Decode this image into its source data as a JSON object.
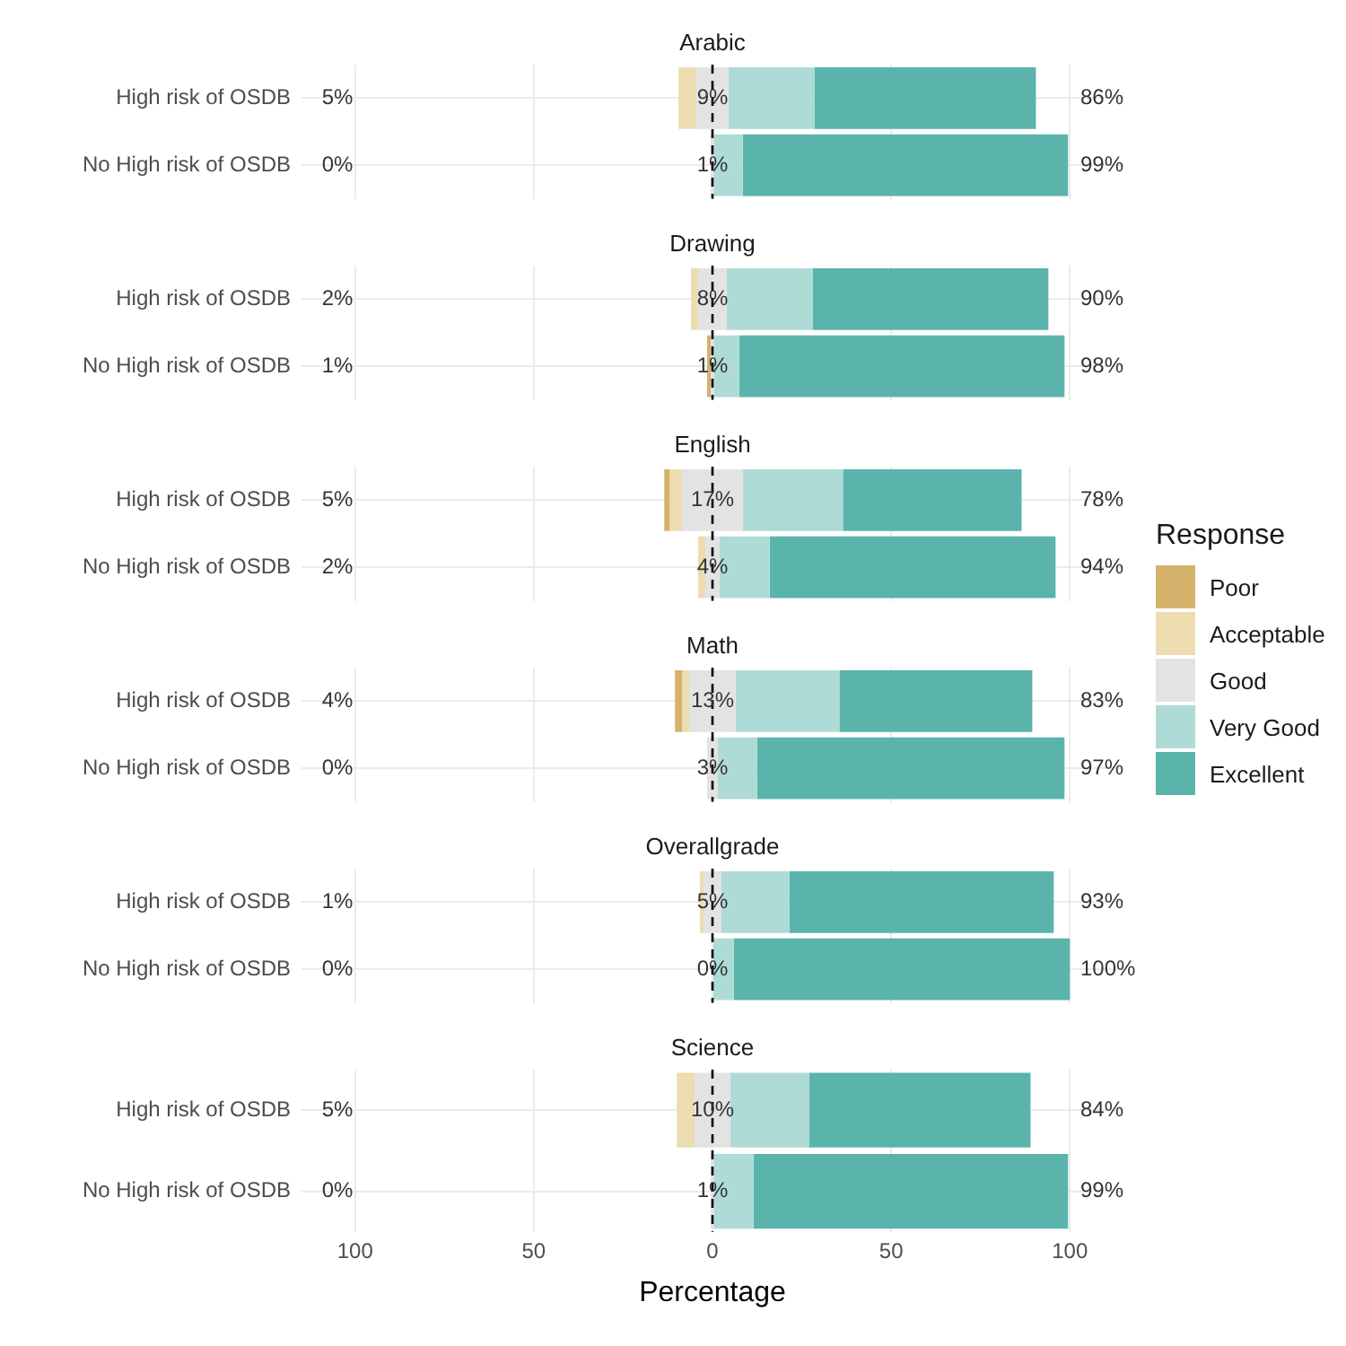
{
  "chart_data": [
    {
      "type": "bar",
      "orientation": "horizontal",
      "title": "Arabic",
      "categories": [
        "High risk of OSDB",
        "No High risk of OSDB"
      ],
      "xlim": [
        -115,
        115
      ],
      "xticks": [
        {
          "value": -100,
          "label": null
        },
        {
          "value": -50,
          "label": null
        },
        {
          "value": 0,
          "label": null
        },
        {
          "value": 50,
          "label": null
        },
        {
          "value": 100,
          "label": null
        }
      ],
      "grid": true,
      "tick_labels": "y",
      "legend": "right",
      "legend_title": "Response",
      "ref_lines": [
        {
          "axis": "x",
          "value": 0,
          "color": "#000000",
          "line_style": "dashed"
        }
      ],
      "series": [
        {
          "name": "Poor",
          "color": "#d5b26b",
          "values": [
            null,
            null
          ],
          "base": [
            null,
            null
          ]
        },
        {
          "name": "Acceptable",
          "color": "#ecdcb0",
          "values": [
            5,
            null
          ],
          "base": [
            -9.5,
            null
          ]
        },
        {
          "name": "Good",
          "color": "#e3e3e3",
          "values": [
            9,
            1
          ],
          "base": [
            -4.5,
            -0.5
          ]
        },
        {
          "name": "Very Good",
          "color": "#aedbd6",
          "values": [
            24,
            8
          ],
          "base": [
            4.5,
            0.5
          ]
        },
        {
          "name": "Excellent",
          "color": "#5ab4ac",
          "values": [
            62,
            91
          ],
          "base": [
            28.5,
            8.5
          ]
        }
      ],
      "annotations": [
        "5%",
        "9%",
        "86%",
        "0%",
        "1%",
        "99%"
      ]
    },
    {
      "type": "bar",
      "orientation": "horizontal",
      "title": "Drawing",
      "categories": [
        "High risk of OSDB",
        "No High risk of OSDB"
      ],
      "xlim": [
        -115,
        115
      ],
      "xticks": [
        {
          "value": -100,
          "label": null
        },
        {
          "value": -50,
          "label": null
        },
        {
          "value": 0,
          "label": null
        },
        {
          "value": 50,
          "label": null
        },
        {
          "value": 100,
          "label": null
        }
      ],
      "grid": true,
      "tick_labels": "y",
      "ref_lines": [
        {
          "axis": "x",
          "value": 0,
          "color": "#000000",
          "line_style": "dashed"
        }
      ],
      "series": [
        {
          "color": "#d5b26b",
          "values": [
            null,
            1
          ],
          "base": [
            null,
            -1.5
          ]
        },
        {
          "color": "#ecdcb0",
          "values": [
            2,
            null
          ],
          "base": [
            -6,
            null
          ]
        },
        {
          "color": "#e3e3e3",
          "values": [
            8,
            1
          ],
          "base": [
            -4,
            -0.5
          ]
        },
        {
          "color": "#aedbd6",
          "values": [
            24,
            7
          ],
          "base": [
            4,
            0.5
          ]
        },
        {
          "color": "#5ab4ac",
          "values": [
            66,
            91
          ],
          "base": [
            28,
            7.5
          ]
        }
      ],
      "annotations": [
        "2%",
        "8%",
        "90%",
        "1%",
        "1%",
        "98%"
      ]
    },
    {
      "type": "bar",
      "orientation": "horizontal",
      "title": "English",
      "categories": [
        "High risk of OSDB",
        "No High risk of OSDB"
      ],
      "xlim": [
        -115,
        115
      ],
      "xticks": [
        {
          "value": -100,
          "label": null
        },
        {
          "value": -50,
          "label": null
        },
        {
          "value": 0,
          "label": null
        },
        {
          "value": 50,
          "label": null
        },
        {
          "value": 100,
          "label": null
        }
      ],
      "grid": true,
      "tick_labels": "y",
      "ref_lines": [
        {
          "axis": "x",
          "value": 0,
          "color": "#000000",
          "line_style": "dashed"
        }
      ],
      "series": [
        {
          "color": "#d5b26b",
          "values": [
            1.5,
            null
          ],
          "base": [
            -13.5,
            null
          ]
        },
        {
          "color": "#ecdcb0",
          "values": [
            3.5,
            2
          ],
          "base": [
            -12,
            -4
          ]
        },
        {
          "color": "#e3e3e3",
          "values": [
            17,
            4
          ],
          "base": [
            -8.5,
            -2
          ]
        },
        {
          "color": "#aedbd6",
          "values": [
            28,
            14
          ],
          "base": [
            8.5,
            2
          ]
        },
        {
          "color": "#5ab4ac",
          "values": [
            50,
            80
          ],
          "base": [
            36.5,
            16
          ]
        }
      ],
      "annotations": [
        "5%",
        "17%",
        "78%",
        "2%",
        "4%",
        "94%"
      ]
    },
    {
      "type": "bar",
      "orientation": "horizontal",
      "title": "Math",
      "categories": [
        "High risk of OSDB",
        "No High risk of OSDB"
      ],
      "xlim": [
        -115,
        115
      ],
      "xticks": [
        {
          "value": -100,
          "label": null
        },
        {
          "value": -50,
          "label": null
        },
        {
          "value": 0,
          "label": null
        },
        {
          "value": 50,
          "label": null
        },
        {
          "value": 100,
          "label": null
        }
      ],
      "grid": true,
      "tick_labels": "y",
      "ref_lines": [
        {
          "axis": "x",
          "value": 0,
          "color": "#000000",
          "line_style": "dashed"
        }
      ],
      "series": [
        {
          "color": "#d5b26b",
          "values": [
            2,
            null
          ],
          "base": [
            -10.5,
            null
          ]
        },
        {
          "color": "#ecdcb0",
          "values": [
            2,
            null
          ],
          "base": [
            -8.5,
            null
          ]
        },
        {
          "color": "#e3e3e3",
          "values": [
            13,
            3
          ],
          "base": [
            -6.5,
            -1.5
          ]
        },
        {
          "color": "#aedbd6",
          "values": [
            29,
            11
          ],
          "base": [
            6.5,
            1.5
          ]
        },
        {
          "color": "#5ab4ac",
          "values": [
            54,
            86
          ],
          "base": [
            35.5,
            12.5
          ]
        }
      ],
      "annotations": [
        "4%",
        "13%",
        "83%",
        "0%",
        "3%",
        "97%"
      ]
    },
    {
      "type": "bar",
      "orientation": "horizontal",
      "title": "Overallgrade",
      "categories": [
        "High risk of OSDB",
        "No High risk of OSDB"
      ],
      "xlim": [
        -115,
        115
      ],
      "xticks": [
        {
          "value": -100,
          "label": null
        },
        {
          "value": -50,
          "label": null
        },
        {
          "value": 0,
          "label": null
        },
        {
          "value": 50,
          "label": null
        },
        {
          "value": 100,
          "label": null
        }
      ],
      "grid": true,
      "tick_labels": "y",
      "ref_lines": [
        {
          "axis": "x",
          "value": 0,
          "color": "#000000",
          "line_style": "dashed"
        }
      ],
      "series": [
        {
          "color": "#ecdcb0",
          "values": [
            1,
            null
          ],
          "base": [
            -3.5,
            null
          ]
        },
        {
          "color": "#e3e3e3",
          "values": [
            5,
            null
          ],
          "base": [
            -2.5,
            null
          ]
        },
        {
          "color": "#aedbd6",
          "values": [
            19,
            6
          ],
          "base": [
            2.5,
            0
          ]
        },
        {
          "color": "#5ab4ac",
          "values": [
            74,
            94
          ],
          "base": [
            21.5,
            6
          ]
        }
      ],
      "annotations": [
        "1%",
        "5%",
        "93%",
        "0%",
        "0%",
        "100%"
      ]
    },
    {
      "type": "bar",
      "orientation": "horizontal",
      "title": "Science",
      "xlabel": "Percentage",
      "categories": [
        "High risk of OSDB",
        "No High risk of OSDB"
      ],
      "xlim": [
        -115,
        115
      ],
      "xticks": [
        {
          "value": -100,
          "label": "100"
        },
        {
          "value": -50,
          "label": "50"
        },
        0,
        50,
        100
      ],
      "grid": true,
      "ref_lines": [
        {
          "axis": "x",
          "value": 0,
          "color": "#000000",
          "line_style": "dashed"
        }
      ],
      "series": [
        {
          "color": "#ecdcb0",
          "values": [
            5,
            null
          ],
          "base": [
            -10,
            null
          ]
        },
        {
          "color": "#e3e3e3",
          "values": [
            10,
            1
          ],
          "base": [
            -5,
            -0.5
          ]
        },
        {
          "color": "#aedbd6",
          "values": [
            22,
            11
          ],
          "base": [
            5,
            0.5
          ]
        },
        {
          "color": "#5ab4ac",
          "values": [
            62,
            88
          ],
          "base": [
            27,
            11.5
          ]
        }
      ],
      "annotations": [
        "5%",
        "10%",
        "84%",
        "0%",
        "1%",
        "99%"
      ]
    }
  ]
}
